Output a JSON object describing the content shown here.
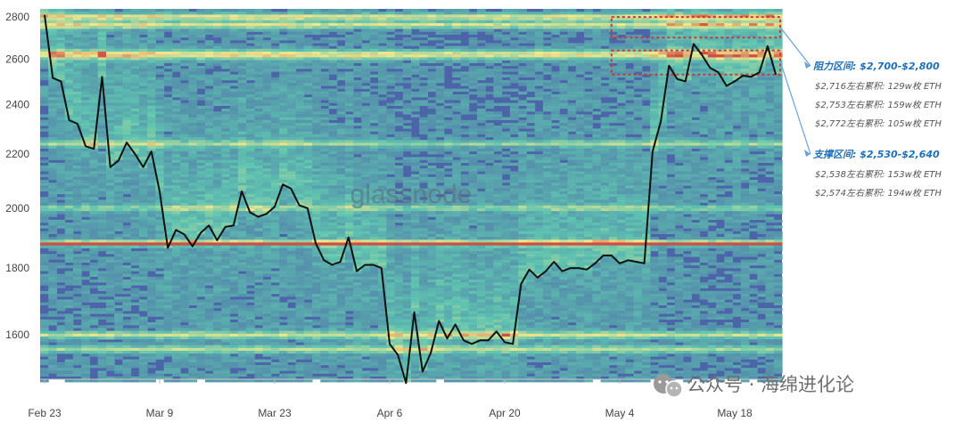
{
  "chart_data": {
    "type": "heatmap",
    "title": "",
    "xlabel": "",
    "ylabel": "",
    "ylim": [
      1480,
      2840
    ],
    "y_scale": "log",
    "x_ticks": [
      "Feb 23",
      "Mar 9",
      "Mar 23",
      "Apr 6",
      "Apr 20",
      "May 4",
      "May 18"
    ],
    "y_ticks": [
      2800,
      2600,
      2400,
      2200,
      2000,
      1800,
      1600
    ],
    "series": [
      {
        "name": "",
        "x": [
          "Feb 23",
          "Feb 24",
          "Feb 25",
          "Feb 26",
          "Feb 27",
          "Feb 28",
          "Mar 1",
          "Mar 2",
          "Mar 3",
          "Mar 4",
          "Mar 5",
          "Mar 6",
          "Mar 7",
          "Mar 8",
          "Mar 9",
          "Mar 10",
          "Mar 11",
          "Mar 12",
          "Mar 13",
          "Mar 14",
          "Mar 15",
          "Mar 16",
          "Mar 17",
          "Mar 18",
          "Mar 19",
          "Mar 20",
          "Mar 21",
          "Mar 22",
          "Mar 23",
          "Mar 24",
          "Mar 25",
          "Mar 26",
          "Mar 27",
          "Mar 28",
          "Mar 29",
          "Mar 30",
          "Mar 31",
          "Apr 1",
          "Apr 2",
          "Apr 3",
          "Apr 4",
          "Apr 5",
          "Apr 6",
          "Apr 7",
          "Apr 8",
          "Apr 9",
          "Apr 10",
          "Apr 11",
          "Apr 12",
          "Apr 13",
          "Apr 14",
          "Apr 15",
          "Apr 16",
          "Apr 17",
          "Apr 18",
          "Apr 19",
          "Apr 20",
          "Apr 21",
          "Apr 22",
          "Apr 23",
          "Apr 24",
          "Apr 25",
          "Apr 26",
          "Apr 27",
          "Apr 28",
          "Apr 29",
          "Apr 30",
          "May 1",
          "May 2",
          "May 3",
          "May 4",
          "May 5",
          "May 6",
          "May 7",
          "May 8",
          "May 9",
          "May 10",
          "May 11",
          "May 12",
          "May 13",
          "May 14",
          "May 15",
          "May 16",
          "May 17",
          "May 18",
          "May 19",
          "May 20",
          "May 21",
          "May 22",
          "May 23"
        ],
        "y": [
          2810,
          2515,
          2500,
          2335,
          2320,
          2230,
          2220,
          2520,
          2150,
          2175,
          2245,
          2200,
          2150,
          2210,
          2060,
          1865,
          1925,
          1910,
          1870,
          1915,
          1940,
          1890,
          1935,
          1940,
          2060,
          1985,
          1970,
          1980,
          2005,
          2085,
          2070,
          2010,
          2000,
          1880,
          1825,
          1810,
          1820,
          1900,
          1790,
          1810,
          1810,
          1800,
          1575,
          1545,
          1470,
          1665,
          1500,
          1550,
          1640,
          1590,
          1630,
          1585,
          1575,
          1585,
          1585,
          1610,
          1580,
          1575,
          1750,
          1795,
          1770,
          1790,
          1820,
          1790,
          1800,
          1800,
          1795,
          1815,
          1840,
          1840,
          1815,
          1825,
          1820,
          1815,
          2210,
          2330,
          2570,
          2510,
          2500,
          2670,
          2620,
          2560,
          2540,
          2480,
          2500,
          2525,
          2520,
          2540,
          2660,
          2530
        ]
      }
    ],
    "annotations": {
      "resistance": {
        "title": "阻力区间: $2,700-$2,800",
        "range": [
          2700,
          2800
        ],
        "lines": [
          "$2,716左右累积: 129w枚 ETH",
          "$2,753左右累积: 159w枚 ETH",
          "$2,772左右累积: 105w枚 ETH"
        ]
      },
      "support": {
        "title": "支撑区间: $2,530-$2,640",
        "range": [
          2530,
          2640
        ],
        "lines": [
          "$2,538左右累积: 153w枚 ETH",
          "$2,574左右累积: 194w枚 ETH"
        ]
      }
    },
    "colors": {
      "heat_low": "#4c64a8",
      "heat_mid": "#5fc4b0",
      "heat_high": "#f3e88a",
      "heat_peak": "#d24c44",
      "price_line": "#111111",
      "zone_box": "#d13438",
      "note_title": "#1f6fb8"
    }
  },
  "watermark": "glassnode",
  "footer": {
    "account_label": "公众号 · 海绵进化论",
    "icon": "wechat-icon"
  }
}
